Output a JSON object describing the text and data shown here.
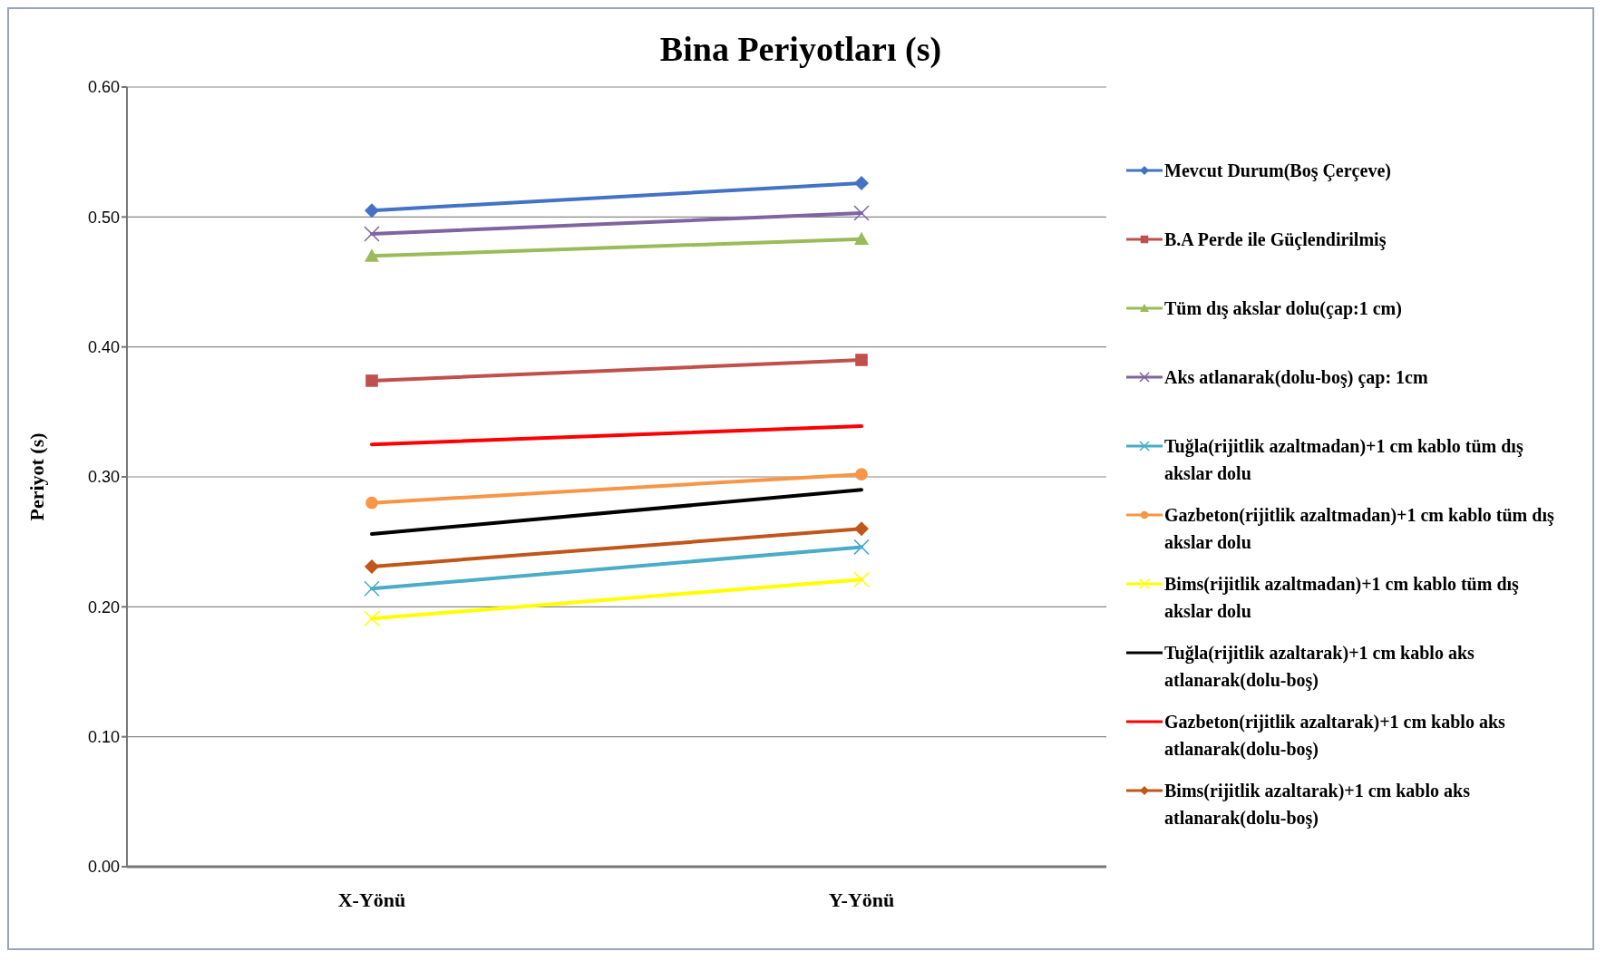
{
  "chart_data": {
    "type": "line",
    "title": "Bina Periyotları (s)",
    "ylabel": "Periyot (s)",
    "categories": [
      "X-Yönü",
      "Y-Yönü"
    ],
    "ylim": [
      0,
      0.6
    ],
    "yticks": [
      {
        "value": 0,
        "label": "0.00"
      },
      {
        "value": 0.1,
        "label": "0.10"
      },
      {
        "value": 0.2,
        "label": "0.20"
      },
      {
        "value": 0.3,
        "label": "0.30"
      },
      {
        "value": 0.4,
        "label": "0.40"
      },
      {
        "value": 0.5,
        "label": "0.50"
      },
      {
        "value": 0.6,
        "label": "0.60"
      }
    ],
    "grid": "y",
    "legend": "right",
    "line_style": "solid",
    "series": [
      {
        "name": "Mevcut Durum(Boş Çerçeve)",
        "color": "#4472c4",
        "marker": "diamond",
        "values": [
          0.505,
          0.526
        ]
      },
      {
        "name": "B.A Perde ile Güçlendirilmiş",
        "color": "#c0504d",
        "marker": "square",
        "values": [
          0.374,
          0.39
        ]
      },
      {
        "name": "Tüm dış akslar dolu(çap:1 cm)",
        "color": "#9bbb59",
        "marker": "triangle",
        "values": [
          0.47,
          0.483
        ]
      },
      {
        "name": "Aks atlanarak(dolu-boş) çap: 1cm",
        "color": "#8064a2",
        "marker": "cross",
        "values": [
          0.487,
          0.503
        ]
      },
      {
        "name": "Tuğla(rijitlik azaltmadan)+1 cm kablo tüm dış akslar dolu",
        "color": "#4bacc6",
        "marker": "cross",
        "values": [
          0.214,
          0.246
        ]
      },
      {
        "name": "Gazbeton(rijitlik azaltmadan)+1 cm kablo tüm dış akslar dolu",
        "color": "#f79646",
        "marker": "circle",
        "values": [
          0.28,
          0.302
        ]
      },
      {
        "name": "Bims(rijitlik azaltmadan)+1 cm kablo tüm dış akslar dolu",
        "color": "#ffff00",
        "marker": "cross",
        "values": [
          0.191,
          0.221
        ]
      },
      {
        "name": "Tuğla(rijitlik azaltarak)+1 cm kablo aks atlanarak(dolu-boş)",
        "color": "#000000",
        "marker": "none",
        "values": [
          0.256,
          0.29
        ]
      },
      {
        "name": "Gazbeton(rijitlik azaltarak)+1 cm kablo aks atlanarak(dolu-boş)",
        "color": "#ff0000",
        "marker": "none",
        "values": [
          0.325,
          0.339
        ]
      },
      {
        "name": "Bims(rijitlik azaltarak)+1 cm kablo aks atlanarak(dolu-boş)",
        "color": "#c0561a",
        "marker": "diamond",
        "values": [
          0.231,
          0.26
        ]
      }
    ]
  }
}
